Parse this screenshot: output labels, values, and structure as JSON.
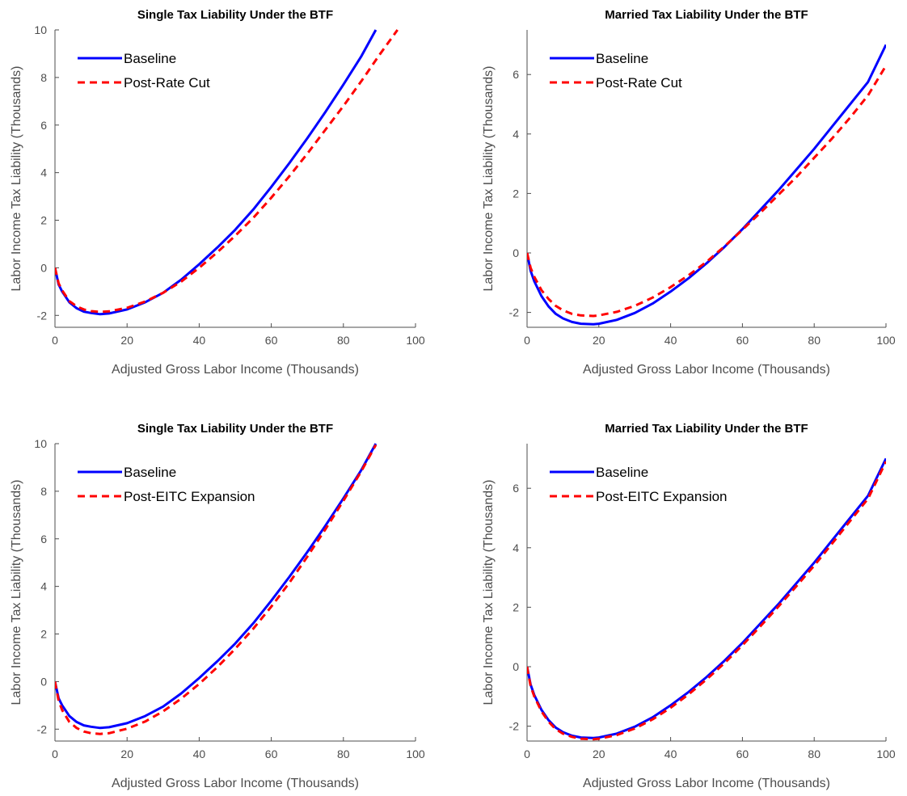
{
  "colors": {
    "baseline": "#0000ff",
    "reform": "#ff0000",
    "axis": "#4d4d4d",
    "text": "#000000"
  },
  "chart_data": [
    {
      "type": "line",
      "title": "Single Tax Liability Under the BTF",
      "xlabel": "Adjusted Gross Labor Income (Thousands)",
      "ylabel": "Labor Income Tax Liability (Thousands)",
      "xlim": [
        0,
        100
      ],
      "ylim": [
        -2.5,
        10
      ],
      "xticks": [
        0,
        20,
        40,
        60,
        80,
        100
      ],
      "yticks": [
        -2,
        0,
        2,
        4,
        6,
        8,
        10
      ],
      "legend_position": "top-left",
      "series": [
        {
          "name": "Baseline",
          "style": "solid",
          "x": [
            0,
            1,
            2,
            4,
            6,
            8,
            10,
            12.5,
            15,
            20,
            25,
            30,
            35,
            40,
            45,
            50,
            55,
            60,
            65,
            70,
            75,
            80,
            85,
            89
          ],
          "y": [
            0,
            -0.7,
            -1.0,
            -1.45,
            -1.7,
            -1.84,
            -1.9,
            -1.95,
            -1.92,
            -1.75,
            -1.45,
            -1.05,
            -0.5,
            0.15,
            0.85,
            1.6,
            2.45,
            3.4,
            4.4,
            5.45,
            6.55,
            7.7,
            8.9,
            10.0
          ]
        },
        {
          "name": "Post-Rate Cut",
          "style": "dashed",
          "x": [
            0,
            1,
            2,
            4,
            6,
            8,
            10,
            12.5,
            15,
            20,
            25,
            30,
            35,
            40,
            45,
            50,
            55,
            60,
            65,
            70,
            75,
            80,
            85,
            90,
            95
          ],
          "y": [
            0,
            -0.65,
            -0.95,
            -1.4,
            -1.62,
            -1.75,
            -1.82,
            -1.85,
            -1.83,
            -1.68,
            -1.42,
            -1.05,
            -0.58,
            0.0,
            0.65,
            1.35,
            2.1,
            2.95,
            3.85,
            4.8,
            5.8,
            6.8,
            7.85,
            8.95,
            10.0
          ]
        }
      ]
    },
    {
      "type": "line",
      "title": "Married Tax Liability Under the BTF",
      "xlabel": "Adjusted Gross Labor Income (Thousands)",
      "ylabel": "Labor Income Tax Liability (Thousands)",
      "xlim": [
        0,
        100
      ],
      "ylim": [
        -2.5,
        7.5
      ],
      "xticks": [
        0,
        20,
        40,
        60,
        80,
        100
      ],
      "yticks": [
        -2,
        0,
        2,
        4,
        6
      ],
      "legend_position": "top-left",
      "series": [
        {
          "name": "Baseline",
          "style": "solid",
          "x": [
            0,
            1,
            2,
            4,
            6,
            8,
            10,
            12.5,
            15,
            18.5,
            20,
            25,
            30,
            35,
            40,
            45,
            50,
            55,
            60,
            65,
            70,
            75,
            80,
            85,
            90,
            95,
            100
          ],
          "y": [
            0,
            -0.6,
            -0.95,
            -1.45,
            -1.8,
            -2.05,
            -2.2,
            -2.32,
            -2.38,
            -2.4,
            -2.38,
            -2.25,
            -2.02,
            -1.7,
            -1.3,
            -0.85,
            -0.35,
            0.2,
            0.8,
            1.45,
            2.1,
            2.8,
            3.5,
            4.25,
            5.0,
            5.75,
            7.0
          ]
        },
        {
          "name": "Post-Rate Cut",
          "style": "dashed",
          "x": [
            0,
            1,
            2,
            4,
            6,
            8,
            10,
            12.5,
            15,
            18.5,
            20,
            25,
            30,
            35,
            40,
            45,
            50,
            55,
            60,
            65,
            70,
            75,
            80,
            85,
            90,
            95,
            100
          ],
          "y": [
            0,
            -0.5,
            -0.8,
            -1.25,
            -1.55,
            -1.78,
            -1.93,
            -2.05,
            -2.1,
            -2.12,
            -2.1,
            -1.98,
            -1.78,
            -1.5,
            -1.15,
            -0.75,
            -0.3,
            0.22,
            0.78,
            1.35,
            1.95,
            2.55,
            3.2,
            3.85,
            4.55,
            5.3,
            6.3
          ]
        }
      ]
    },
    {
      "type": "line",
      "title": "Single Tax Liability Under the BTF",
      "xlabel": "Adjusted Gross Labor Income (Thousands)",
      "ylabel": "Labor Income Tax Liability (Thousands)",
      "xlim": [
        0,
        100
      ],
      "ylim": [
        -2.5,
        10
      ],
      "xticks": [
        0,
        20,
        40,
        60,
        80,
        100
      ],
      "yticks": [
        -2,
        0,
        2,
        4,
        6,
        8,
        10
      ],
      "legend_position": "top-left",
      "series": [
        {
          "name": "Baseline",
          "style": "solid",
          "x": [
            0,
            1,
            2,
            4,
            6,
            8,
            10,
            12.5,
            15,
            20,
            25,
            30,
            35,
            40,
            45,
            50,
            55,
            60,
            65,
            70,
            75,
            80,
            85,
            89
          ],
          "y": [
            0,
            -0.7,
            -1.0,
            -1.45,
            -1.7,
            -1.84,
            -1.9,
            -1.95,
            -1.92,
            -1.75,
            -1.45,
            -1.05,
            -0.5,
            0.15,
            0.85,
            1.6,
            2.45,
            3.4,
            4.4,
            5.45,
            6.55,
            7.7,
            8.9,
            10.0
          ]
        },
        {
          "name": "Post-EITC Expansion",
          "style": "dashed",
          "x": [
            0,
            1,
            2,
            4,
            6,
            8,
            10,
            12.5,
            15,
            20,
            25,
            30,
            35,
            40,
            45,
            50,
            55,
            60,
            65,
            70,
            75,
            80,
            85,
            89
          ],
          "y": [
            0,
            -0.8,
            -1.2,
            -1.7,
            -1.95,
            -2.1,
            -2.17,
            -2.2,
            -2.17,
            -1.98,
            -1.68,
            -1.25,
            -0.72,
            -0.1,
            0.6,
            1.38,
            2.22,
            3.15,
            4.15,
            5.25,
            6.4,
            7.6,
            8.85,
            9.95
          ]
        }
      ]
    },
    {
      "type": "line",
      "title": "Married Tax Liability Under the BTF",
      "xlabel": "Adjusted Gross Labor Income (Thousands)",
      "ylabel": "Labor Income Tax Liability (Thousands)",
      "xlim": [
        0,
        100
      ],
      "ylim": [
        -2.5,
        7.5
      ],
      "xticks": [
        0,
        20,
        40,
        60,
        80,
        100
      ],
      "yticks": [
        -2,
        0,
        2,
        4,
        6
      ],
      "legend_position": "top-left",
      "series": [
        {
          "name": "Baseline",
          "style": "solid",
          "x": [
            0,
            1,
            2,
            4,
            6,
            8,
            10,
            12.5,
            15,
            18.5,
            20,
            25,
            30,
            35,
            40,
            45,
            50,
            55,
            60,
            65,
            70,
            75,
            80,
            85,
            90,
            95,
            100
          ],
          "y": [
            0,
            -0.6,
            -0.95,
            -1.45,
            -1.8,
            -2.05,
            -2.2,
            -2.32,
            -2.38,
            -2.4,
            -2.38,
            -2.25,
            -2.02,
            -1.7,
            -1.3,
            -0.85,
            -0.35,
            0.2,
            0.8,
            1.45,
            2.1,
            2.8,
            3.5,
            4.25,
            5.0,
            5.75,
            7.0
          ]
        },
        {
          "name": "Post-EITC Expansion",
          "style": "dashed",
          "x": [
            0,
            1,
            2,
            4,
            6,
            8,
            10,
            12.5,
            15,
            18.5,
            20,
            25,
            30,
            35,
            40,
            45,
            50,
            55,
            60,
            65,
            70,
            75,
            80,
            85,
            90,
            95,
            100
          ],
          "y": [
            0,
            -0.65,
            -1.0,
            -1.5,
            -1.85,
            -2.1,
            -2.25,
            -2.36,
            -2.42,
            -2.44,
            -2.42,
            -2.3,
            -2.08,
            -1.77,
            -1.38,
            -0.93,
            -0.43,
            0.12,
            0.72,
            1.36,
            2.02,
            2.7,
            3.4,
            4.14,
            4.9,
            5.65,
            6.9
          ]
        }
      ]
    }
  ]
}
